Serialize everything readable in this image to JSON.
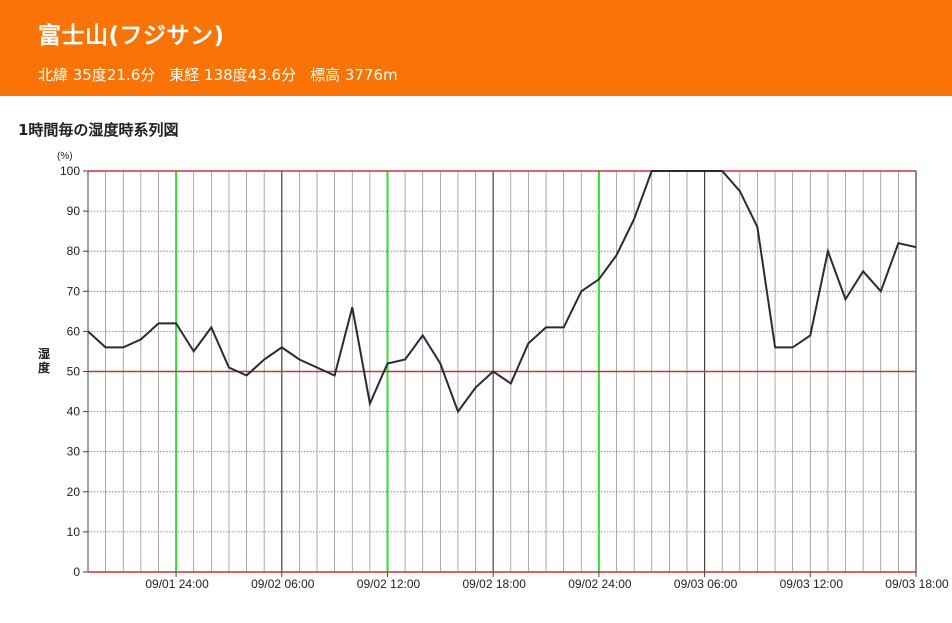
{
  "station": {
    "name": "富士山(フジサン)",
    "latitude": "北緯 35度21.6分",
    "longitude": "東経 138度43.6分",
    "elevation": "標高 3776m"
  },
  "section_title": "1時間毎の湿度時系列図",
  "colors": {
    "header": "#f97306",
    "line": "#2a2a3a",
    "grid": "#555555",
    "day_line": "#33dd33",
    "threshold": "#cc3333"
  },
  "chart_data": {
    "type": "line",
    "y_unit": "(%)",
    "ylabel": "湿度",
    "ylim": [
      0,
      100
    ],
    "yticks": [
      0,
      10,
      20,
      30,
      40,
      50,
      60,
      70,
      80,
      90,
      100
    ],
    "xlim": [
      "09/01 19:00",
      "09/03 18:00"
    ],
    "xticks": [
      "09/01 24:00",
      "09/02 06:00",
      "09/02 12:00",
      "09/02 18:00",
      "09/02 24:00",
      "09/03 06:00",
      "09/03 12:00",
      "09/03 18:00"
    ],
    "grid": true,
    "hourly_grid": true,
    "day_boundaries": [
      "09/01 24:00",
      "09/02 12:00",
      "09/02 24:00"
    ],
    "reference_lines": [
      50,
      100
    ],
    "series": [
      {
        "x": [
          "09/01 19:00",
          "09/01 20:00",
          "09/01 21:00",
          "09/01 22:00",
          "09/01 23:00",
          "09/01 24:00",
          "09/02 01:00",
          "09/02 02:00",
          "09/02 03:00",
          "09/02 04:00",
          "09/02 05:00",
          "09/02 06:00",
          "09/02 07:00",
          "09/02 08:00",
          "09/02 09:00",
          "09/02 10:00",
          "09/02 11:00",
          "09/02 12:00",
          "09/02 13:00",
          "09/02 14:00",
          "09/02 15:00",
          "09/02 16:00",
          "09/02 17:00",
          "09/02 18:00",
          "09/02 19:00",
          "09/02 20:00",
          "09/02 21:00",
          "09/02 22:00",
          "09/02 23:00",
          "09/02 24:00",
          "09/03 01:00",
          "09/03 02:00",
          "09/03 03:00",
          "09/03 04:00",
          "09/03 05:00",
          "09/03 06:00",
          "09/03 07:00",
          "09/03 08:00",
          "09/03 09:00",
          "09/03 10:00",
          "09/03 11:00",
          "09/03 12:00",
          "09/03 13:00",
          "09/03 14:00",
          "09/03 15:00",
          "09/03 16:00",
          "09/03 17:00",
          "09/03 18:00"
        ],
        "values": [
          60,
          56,
          56,
          58,
          62,
          62,
          55,
          61,
          51,
          49,
          53,
          56,
          53,
          51,
          49,
          66,
          42,
          52,
          53,
          59,
          52,
          40,
          46,
          50,
          47,
          57,
          61,
          61,
          70,
          73,
          79,
          88,
          100,
          100,
          100,
          100,
          100,
          95,
          86,
          56,
          56,
          59,
          80,
          68,
          75,
          70,
          82,
          81
        ]
      }
    ]
  }
}
